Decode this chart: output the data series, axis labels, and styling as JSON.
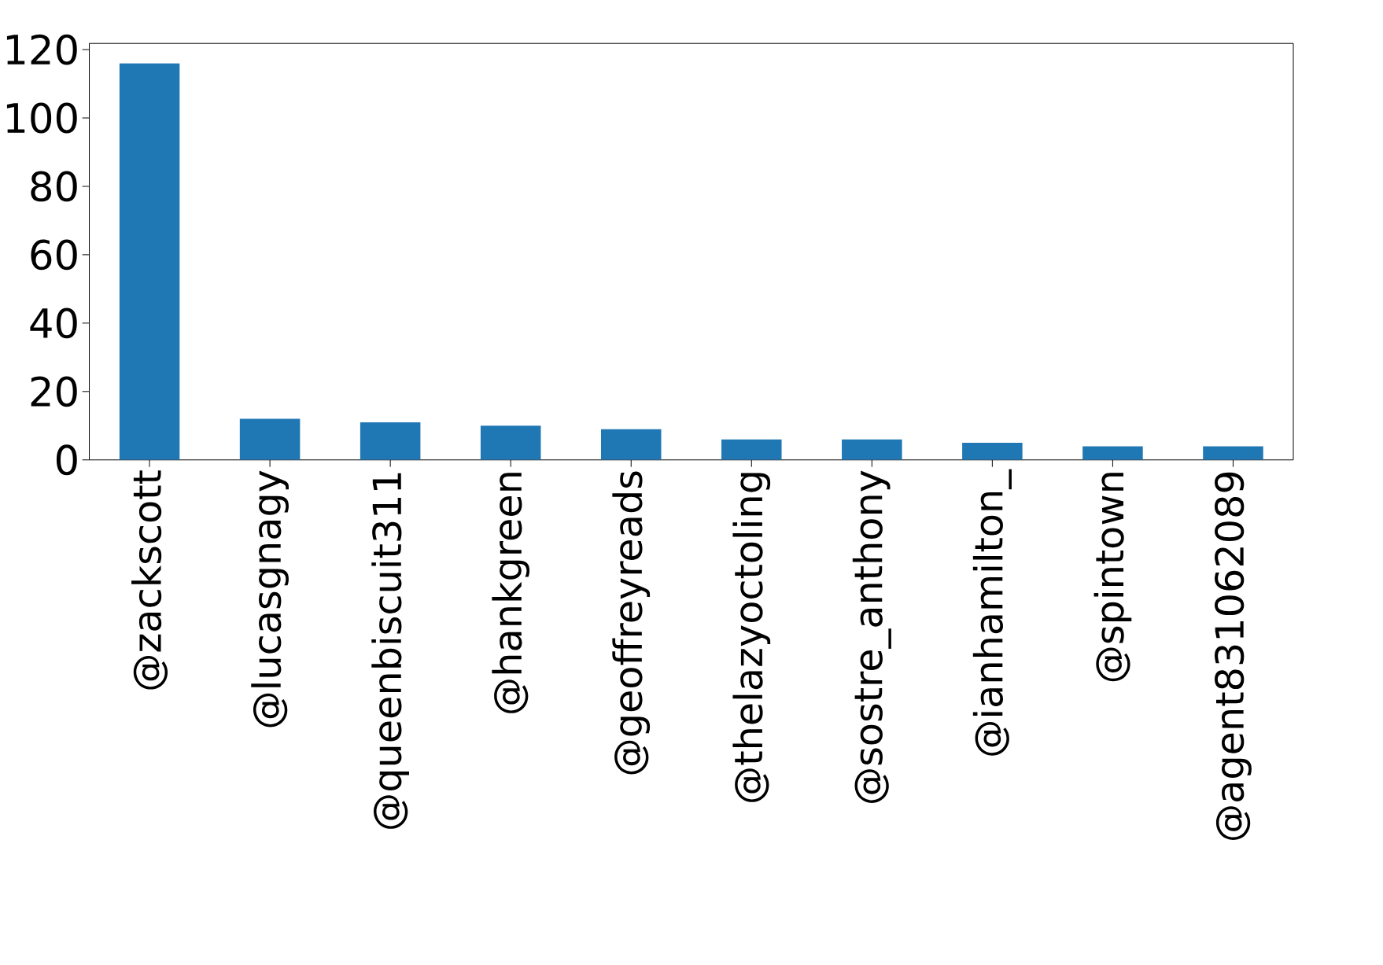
{
  "chart_data": {
    "type": "bar",
    "categories": [
      "@zackscott",
      "@lucasgnagy",
      "@queenbiscuit311",
      "@hankgreen",
      "@geoffreyreads",
      "@thelazyoctoling",
      "@sostre_anthony",
      "@ianhamilton_",
      "@spintown",
      "@agent831062089"
    ],
    "values": [
      116,
      12,
      11,
      10,
      9,
      6,
      6,
      5,
      4,
      4
    ],
    "color": "#1f77b4",
    "ylim": [
      0,
      121.8
    ],
    "yticks": [
      0,
      20,
      40,
      60,
      80,
      100,
      120
    ]
  }
}
